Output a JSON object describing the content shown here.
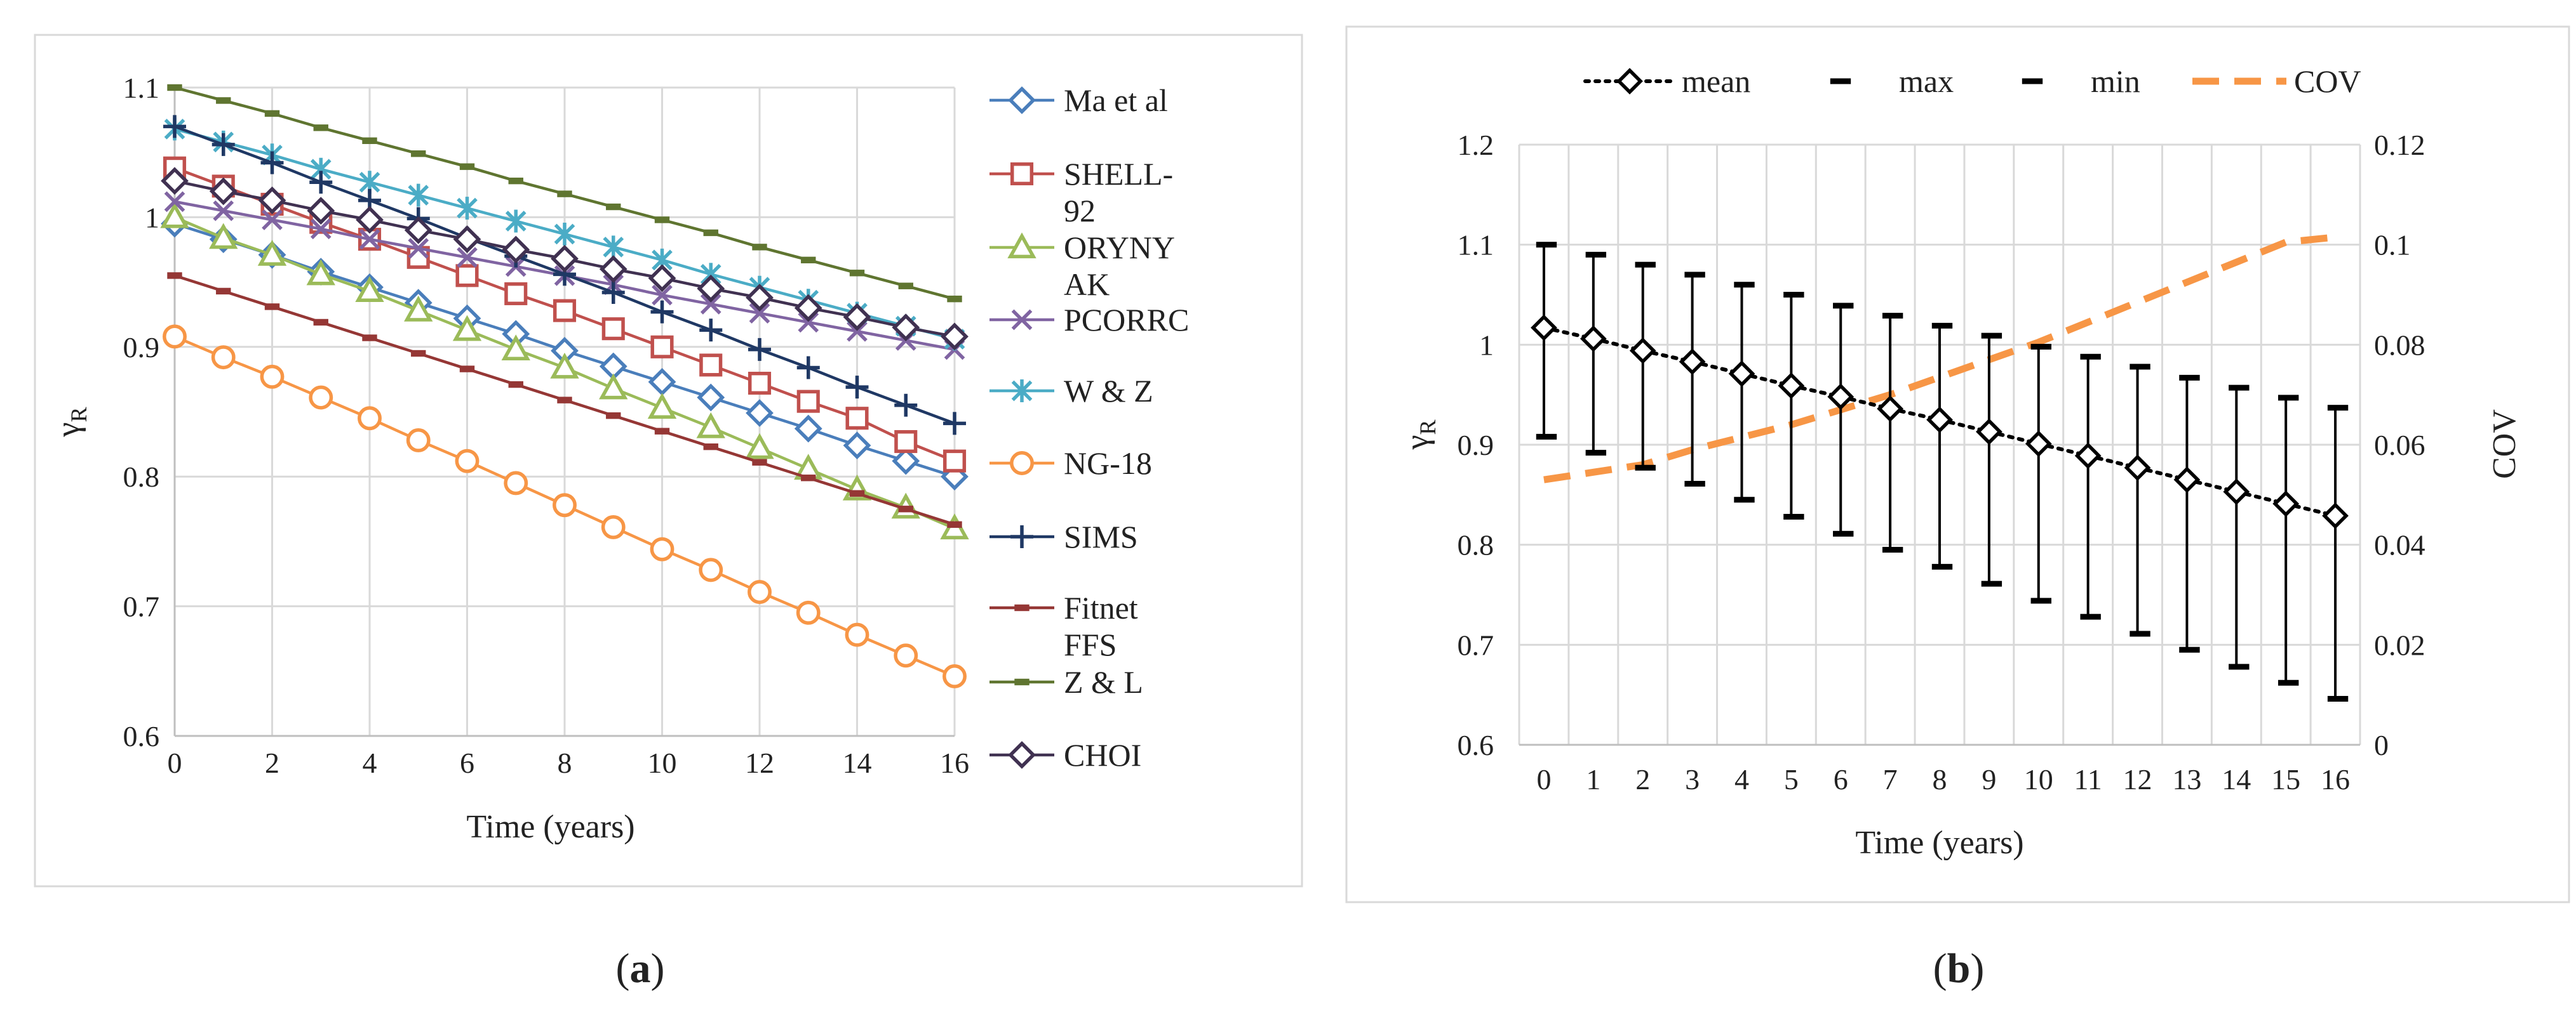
{
  "figure": {
    "panel_labels": [
      {
        "open": "(",
        "letter": "a",
        "close": ")"
      },
      {
        "open": "(",
        "letter": "b",
        "close": ")"
      }
    ]
  },
  "chart_data": [
    {
      "type": "line",
      "panel": "a",
      "title": "",
      "xlabel": "Time (years)",
      "ylabel_main": "γ",
      "ylabel_sub": "R",
      "xlim": [
        0,
        16
      ],
      "ylim": [
        0.6,
        1.1
      ],
      "xticks": [
        0,
        2,
        4,
        6,
        8,
        10,
        12,
        14,
        16
      ],
      "xtick_labels": [
        "0",
        "2",
        "4",
        "6",
        "8",
        "10",
        "12",
        "14",
        "16"
      ],
      "yticks": [
        0.6,
        0.7,
        0.8,
        0.9,
        1.0,
        1.1
      ],
      "ytick_labels": [
        "0.6",
        "0.7",
        "0.8",
        "0.9",
        "1",
        "1.1"
      ],
      "grid": true,
      "legend_position": "right",
      "x": [
        0,
        1,
        2,
        3,
        4,
        5,
        6,
        7,
        8,
        9,
        10,
        11,
        12,
        13,
        14,
        15,
        16
      ],
      "series": [
        {
          "name": "Ma et al",
          "legend_lines": [
            "Ma et al"
          ],
          "color": "#4a7ebb",
          "marker": "diamond",
          "values": [
            0.995,
            0.983,
            0.971,
            0.958,
            0.946,
            0.934,
            0.922,
            0.91,
            0.897,
            0.885,
            0.873,
            0.861,
            0.849,
            0.837,
            0.824,
            0.812,
            0.8
          ]
        },
        {
          "name": "SHELL-92",
          "legend_lines": [
            "SHELL-",
            "92"
          ],
          "color": "#c0504d",
          "marker": "square",
          "values": [
            1.038,
            1.024,
            1.01,
            0.996,
            0.983,
            0.969,
            0.955,
            0.941,
            0.928,
            0.914,
            0.9,
            0.886,
            0.872,
            0.858,
            0.845,
            0.827,
            0.812
          ]
        },
        {
          "name": "ORYNYAK",
          "legend_lines": [
            "ORYNY",
            "AK"
          ],
          "color": "#9bbb59",
          "marker": "triangle",
          "values": [
            1.0,
            0.984,
            0.971,
            0.956,
            0.943,
            0.928,
            0.913,
            0.898,
            0.884,
            0.868,
            0.853,
            0.838,
            0.822,
            0.806,
            0.79,
            0.776,
            0.76
          ]
        },
        {
          "name": "PCORRC",
          "legend_lines": [
            "PCORRC"
          ],
          "color": "#8064a2",
          "marker": "x",
          "values": [
            1.012,
            1.005,
            0.998,
            0.991,
            0.983,
            0.976,
            0.969,
            0.962,
            0.955,
            0.948,
            0.94,
            0.933,
            0.926,
            0.919,
            0.912,
            0.905,
            0.898
          ]
        },
        {
          "name": "W & Z",
          "legend_lines": [
            "W & Z"
          ],
          "color": "#4bacc6",
          "marker": "asterisk",
          "values": [
            1.068,
            1.058,
            1.048,
            1.037,
            1.027,
            1.017,
            1.007,
            0.997,
            0.987,
            0.977,
            0.967,
            0.956,
            0.946,
            0.936,
            0.926,
            0.916,
            0.906
          ]
        },
        {
          "name": "NG-18",
          "legend_lines": [
            "NG-18"
          ],
          "color": "#f79646",
          "marker": "circle",
          "values": [
            0.908,
            0.892,
            0.877,
            0.861,
            0.845,
            0.828,
            0.812,
            0.795,
            0.778,
            0.761,
            0.744,
            0.728,
            0.711,
            0.695,
            0.678,
            0.662,
            0.646
          ]
        },
        {
          "name": "SIMS",
          "legend_lines": [
            "SIMS"
          ],
          "color": "#1f3864",
          "marker": "plus",
          "values": [
            1.07,
            1.056,
            1.042,
            1.027,
            1.013,
            0.999,
            0.984,
            0.97,
            0.956,
            0.942,
            0.927,
            0.913,
            0.898,
            0.884,
            0.869,
            0.855,
            0.841
          ]
        },
        {
          "name": "Fitnet FFS",
          "legend_lines": [
            "Fitnet",
            "FFS"
          ],
          "color": "#953735",
          "marker": "dash",
          "values": [
            0.955,
            0.943,
            0.931,
            0.919,
            0.907,
            0.895,
            0.883,
            0.871,
            0.859,
            0.847,
            0.835,
            0.823,
            0.811,
            0.799,
            0.787,
            0.775,
            0.763
          ]
        },
        {
          "name": "Z & L",
          "legend_lines": [
            "Z & L"
          ],
          "color": "#5f7530",
          "marker": "dash",
          "values": [
            1.1,
            1.09,
            1.08,
            1.069,
            1.059,
            1.049,
            1.039,
            1.028,
            1.018,
            1.008,
            0.998,
            0.988,
            0.977,
            0.967,
            0.957,
            0.947,
            0.937
          ]
        },
        {
          "name": "CHOI",
          "legend_lines": [
            "CHOI"
          ],
          "color": "#403151",
          "marker": "diamond",
          "values": [
            1.028,
            1.02,
            1.013,
            1.005,
            0.998,
            0.99,
            0.983,
            0.975,
            0.968,
            0.96,
            0.953,
            0.945,
            0.938,
            0.93,
            0.923,
            0.915,
            0.908
          ]
        }
      ]
    },
    {
      "type": "line",
      "panel": "b",
      "title": "",
      "xlabel": "Time (years)",
      "ylabel_main": "γ",
      "ylabel_sub": "R",
      "y2label": "COV",
      "xlim": [
        -0.5,
        16.5
      ],
      "ylim": [
        0.6,
        1.2
      ],
      "y2lim": [
        0,
        0.12
      ],
      "xticks": [
        0,
        1,
        2,
        3,
        4,
        5,
        6,
        7,
        8,
        9,
        10,
        11,
        12,
        13,
        14,
        15,
        16
      ],
      "xtick_labels": [
        "0",
        "1",
        "2",
        "3",
        "4",
        "5",
        "6",
        "7",
        "8",
        "9",
        "10",
        "11",
        "12",
        "13",
        "14",
        "15",
        "16"
      ],
      "yticks": [
        0.6,
        0.7,
        0.8,
        0.9,
        1.0,
        1.1,
        1.2
      ],
      "ytick_labels": [
        "0.6",
        "0.7",
        "0.8",
        "0.9",
        "1",
        "1.1",
        "1.2"
      ],
      "y2ticks": [
        0,
        0.02,
        0.04,
        0.06,
        0.08,
        0.1,
        0.12
      ],
      "y2tick_labels": [
        "0",
        "0.02",
        "0.04",
        "0.06",
        "0.08",
        "0.1",
        "0.12"
      ],
      "grid": true,
      "legend_position": "top",
      "legend": [
        {
          "label": "mean",
          "style": "dotted-diamond",
          "color": "#000000"
        },
        {
          "label": "max",
          "style": "dash-marker",
          "color": "#000000"
        },
        {
          "label": "min",
          "style": "dash-marker",
          "color": "#000000"
        },
        {
          "label": "COV",
          "style": "dashed",
          "color": "#f79646"
        }
      ],
      "x": [
        0,
        1,
        2,
        3,
        4,
        5,
        6,
        7,
        8,
        9,
        10,
        11,
        12,
        13,
        14,
        15,
        16
      ],
      "series": [
        {
          "name": "mean",
          "axis": "left",
          "color": "#000000",
          "values": [
            1.017,
            1.006,
            0.994,
            0.983,
            0.971,
            0.959,
            0.948,
            0.936,
            0.925,
            0.913,
            0.901,
            0.889,
            0.877,
            0.865,
            0.853,
            0.841,
            0.829
          ]
        },
        {
          "name": "max",
          "axis": "left",
          "color": "#000000",
          "values": [
            1.1,
            1.09,
            1.08,
            1.07,
            1.06,
            1.05,
            1.039,
            1.029,
            1.019,
            1.009,
            0.998,
            0.988,
            0.978,
            0.967,
            0.957,
            0.947,
            0.937
          ]
        },
        {
          "name": "min",
          "axis": "left",
          "color": "#000000",
          "values": [
            0.908,
            0.892,
            0.877,
            0.861,
            0.845,
            0.828,
            0.811,
            0.795,
            0.778,
            0.761,
            0.744,
            0.728,
            0.711,
            0.695,
            0.678,
            0.662,
            0.646
          ]
        },
        {
          "name": "COV",
          "axis": "right",
          "color": "#f79646",
          "values": [
            0.053,
            0.0545,
            0.056,
            0.059,
            0.0615,
            0.064,
            0.067,
            0.07,
            0.0735,
            0.077,
            0.0805,
            0.0845,
            0.0885,
            0.0925,
            0.0965,
            0.1005,
            0.1015
          ]
        }
      ]
    }
  ]
}
